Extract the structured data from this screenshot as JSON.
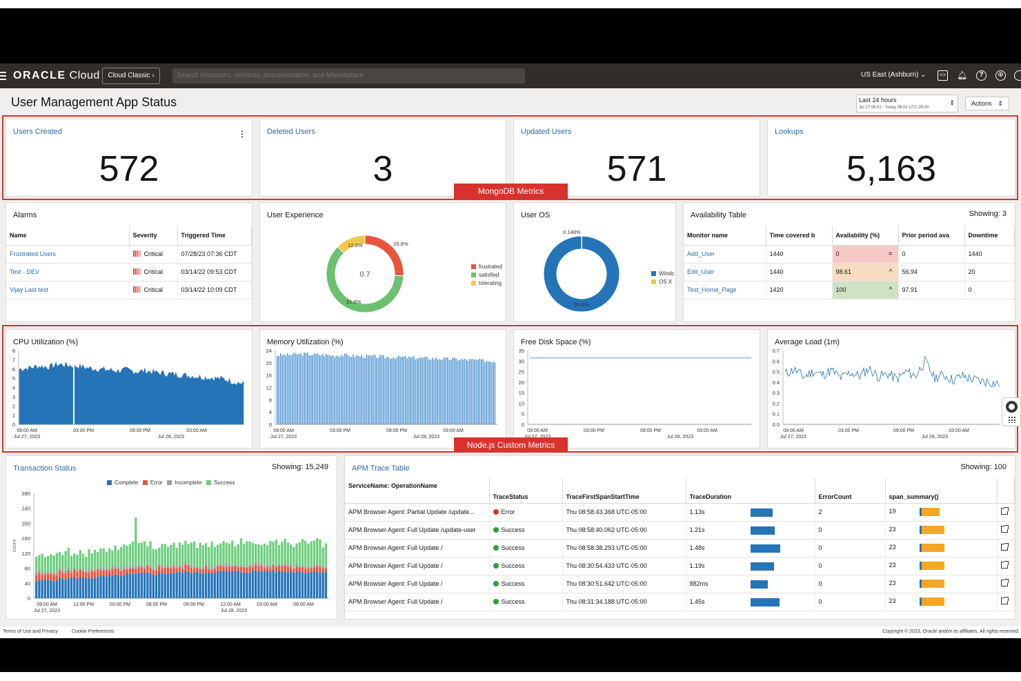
{
  "topbar": {
    "logo_brand": "ORACLE",
    "logo_product": "Cloud",
    "cloud_classic": "Cloud Classic",
    "search_placeholder": "Search resources, services, documentation, and Marketplace",
    "region": "US East (Ashburn)"
  },
  "page": {
    "title": "User Management App Status",
    "time_range": "Last 24 hours",
    "time_detail": "Jul 27 08:02 - Today 08:02 UTC-05:00",
    "actions": "Actions"
  },
  "metrics": [
    {
      "title": "Users Created",
      "value": "572"
    },
    {
      "title": "Deleted Users",
      "value": "3"
    },
    {
      "title": "Updated Users",
      "value": "571"
    },
    {
      "title": "Lookups",
      "value": "5,163"
    }
  ],
  "labels": {
    "mongodb": "MongoDB Metrics",
    "nodejs": "Node.js Custom Metrics"
  },
  "alarms": {
    "title": "Alarms",
    "columns": [
      "Name",
      "Severity",
      "Triggered Time"
    ],
    "rows": [
      {
        "name": "Frustrated Users",
        "severity": "Critical",
        "time": "07/28/23 07:36 CDT"
      },
      {
        "name": "Test - DEV",
        "severity": "Critical",
        "time": "03/14/22 09:53 CDT"
      },
      {
        "name": "Vijay Last test",
        "severity": "Critical",
        "time": "03/14/22 10:09 CDT"
      }
    ]
  },
  "user_experience": {
    "title": "User Experience",
    "center": "0.7",
    "legend": [
      "frustrated",
      "satisfied",
      "tolerating"
    ]
  },
  "user_os": {
    "title": "User OS",
    "legend": [
      "Windc",
      "OS X"
    ]
  },
  "availability": {
    "title": "Availability Table",
    "showing": "Showing: 3",
    "columns": [
      "Monitor name",
      "Time covered b",
      "Availability (%)",
      "Prior period ava",
      "Downtime"
    ],
    "rows": [
      {
        "name": "Add_User",
        "time": "1440",
        "avail": "0",
        "sym": "=",
        "prior": "0",
        "down": "1440"
      },
      {
        "name": "Edit_User",
        "time": "1440",
        "avail": "98.61",
        "sym": "^",
        "prior": "56.94",
        "down": "20"
      },
      {
        "name": "Test_Home_Page",
        "time": "1420",
        "avail": "100",
        "sym": "^",
        "prior": "97.91",
        "down": "0"
      }
    ]
  },
  "charts": {
    "cpu": {
      "title": "CPU Utilization (%)"
    },
    "memory": {
      "title": "Memory Utilization (%)"
    },
    "disk": {
      "title": "Free Disk Space (%)"
    },
    "load": {
      "title": "Average Load (1m)"
    },
    "time_ticks": [
      "09:00 AM",
      "03:00 PM",
      "09:00 PM",
      "03:00 AM"
    ],
    "date_start": "Jul 27, 2023",
    "date_end": "Jul 28, 2023"
  },
  "transaction": {
    "title": "Transaction Status",
    "showing": "Showing: 15,249",
    "legend": [
      "Complete",
      "Error",
      "Incomplete",
      "Success"
    ],
    "ylabel": "count",
    "time_ticks": [
      "09:00 AM",
      "12:00 PM",
      "03:00 PM",
      "06:00 PM",
      "09:00 PM",
      "12:00 AM",
      "03:00 AM",
      "06:00 AM"
    ]
  },
  "apm": {
    "title": "APM Trace Table",
    "showing": "Showing: 100",
    "columns": [
      "ServiceName: OperationName",
      "TraceStatus",
      "TraceFirstSpanStartTime",
      "TraceDuration",
      "ErrorCount",
      "span_summary()"
    ],
    "rows": [
      {
        "op": "APM Browser Agent: Partial Update /update...",
        "status": "Error",
        "start": "Thu 08:58:43.368 UTC-05:00",
        "dur": "1.13s",
        "err": "2",
        "span": "19"
      },
      {
        "op": "APM Browser Agent: Full Update /update-user",
        "status": "Success",
        "start": "Thu 08:58:40.062 UTC-05:00",
        "dur": "1.21s",
        "err": "0",
        "span": "23"
      },
      {
        "op": "APM Browser Agent: Full Update /",
        "status": "Success",
        "start": "Thu 08:58:38.293 UTC-05:00",
        "dur": "1.48s",
        "err": "0",
        "span": "23"
      },
      {
        "op": "APM Browser Agent: Full Update /",
        "status": "Success",
        "start": "Thu 08:30:54.433 UTC-05:00",
        "dur": "1.19s",
        "err": "0",
        "span": "23"
      },
      {
        "op": "APM Browser Agent: Full Update /",
        "status": "Success",
        "start": "Thu 08:30:51.642 UTC-05:00",
        "dur": "882ms",
        "err": "0",
        "span": "23"
      },
      {
        "op": "APM Browser Agent: Full Update /",
        "status": "Success",
        "start": "Thu 08:31:34.188 UTC-05:00",
        "dur": "1.45s",
        "err": "0",
        "span": "23"
      }
    ]
  },
  "footer": {
    "terms": "Terms of Use and Privacy",
    "cookies": "Cookie Preferences",
    "copyright": "Copyright © 2023, Oracle and/or its affiliates. All rights reserved."
  },
  "colors": {
    "accent_red": "#d9322e",
    "link": "#2d6ba8",
    "chart_blue": "#2574b8",
    "frustrated": "#e8553f",
    "satisfied": "#6cc070",
    "tolerating": "#f3c94c",
    "success": "#6fcf7f",
    "incomplete": "#9e9e9e"
  },
  "chart_data": [
    {
      "type": "pie",
      "title": "User Experience",
      "labels": [
        "frustrated",
        "satisfied",
        "tolerating"
      ],
      "values": [
        25.8,
        61.6,
        12.6
      ],
      "value_labels": [
        "25.8%",
        "61.6%",
        "12.6%"
      ],
      "center_value": 0.7
    },
    {
      "type": "pie",
      "title": "User OS",
      "labels": [
        "Windc",
        "OS X"
      ],
      "values": [
        99.9,
        0.148
      ],
      "value_labels": [
        "99.9%",
        "0.148%"
      ]
    },
    {
      "type": "area",
      "title": "CPU Utilization (%)",
      "ylim": [
        0,
        8
      ],
      "yticks": [
        0,
        1,
        2,
        3,
        4,
        5,
        6,
        7,
        8
      ],
      "series": [
        {
          "values": [
            6.0,
            6.1,
            6.3,
            6.2,
            6.5,
            6.4,
            6.3,
            6.1,
            6.0,
            5.9,
            5.8,
            5.9,
            5.7,
            5.8,
            5.6,
            5.5,
            5.4,
            5.3,
            5.2,
            5.1,
            5.0,
            4.9,
            4.6,
            4.4
          ]
        }
      ]
    },
    {
      "type": "bar",
      "title": "Memory Utilization (%)",
      "ylim": [
        0,
        24
      ],
      "yticks": [
        0,
        4,
        8,
        12,
        16,
        20,
        24
      ],
      "series": [
        {
          "values": [
            22.5,
            22.6,
            22.8,
            22.9,
            22.7,
            22.6,
            22.4,
            22.5,
            22.3,
            22.2,
            22.1,
            22.0,
            21.8,
            21.9,
            21.7,
            21.6,
            21.5,
            21.4,
            21.3,
            21.2,
            21.0,
            20.9,
            20.7,
            20.5
          ]
        }
      ]
    },
    {
      "type": "line",
      "title": "Free Disk Space (%)",
      "ylim": [
        0,
        35
      ],
      "yticks": [
        0,
        5,
        10,
        15,
        20,
        25,
        30,
        35
      ],
      "series": [
        {
          "values": [
            31.5,
            31.5,
            31.5,
            31.5,
            31.5,
            31.5,
            31.5,
            31.5,
            31.5,
            31.5,
            31.5,
            31.5
          ]
        }
      ]
    },
    {
      "type": "line",
      "title": "Average Load (1m)",
      "ylim": [
        0,
        0.7
      ],
      "yticks": [
        0.0,
        0.1,
        0.2,
        0.3,
        0.4,
        0.5,
        0.6,
        0.7
      ],
      "series": [
        {
          "values": [
            0.48,
            0.52,
            0.45,
            0.5,
            0.47,
            0.51,
            0.44,
            0.49,
            0.46,
            0.53,
            0.45,
            0.48,
            0.43,
            0.5,
            0.46,
            0.6,
            0.44,
            0.47,
            0.42,
            0.46,
            0.43,
            0.41,
            0.4,
            0.38
          ]
        }
      ]
    },
    {
      "type": "bar",
      "title": "Transaction Status",
      "ylabel": "count",
      "ylim": [
        0,
        280
      ],
      "yticks": [
        0,
        40,
        80,
        120,
        160,
        200,
        240,
        280
      ],
      "categories_count": 30,
      "series": [
        {
          "name": "Complete",
          "values": [
            45,
            48,
            50,
            52,
            55,
            54,
            56,
            58,
            60,
            62,
            64,
            66,
            65,
            67,
            68,
            70,
            68,
            69,
            70,
            72,
            71,
            70,
            72,
            73,
            72,
            71,
            72,
            70,
            71,
            72
          ]
        },
        {
          "name": "Error",
          "values": [
            18,
            17,
            18,
            17,
            16,
            17,
            16,
            15,
            16,
            15,
            16,
            15,
            14,
            15,
            14,
            15,
            14,
            13,
            14,
            13,
            14,
            13,
            12,
            13,
            12,
            13,
            12,
            13,
            12,
            12
          ]
        },
        {
          "name": "Incomplete",
          "values": [
            8,
            8,
            7,
            8,
            7,
            8,
            7,
            6,
            7,
            8,
            7,
            6,
            7,
            6,
            7,
            6,
            7,
            6,
            5,
            6,
            5,
            6,
            5,
            6,
            5,
            6,
            5,
            6,
            5,
            5
          ]
        },
        {
          "name": "Success",
          "values": [
            40,
            42,
            44,
            43,
            46,
            48,
            50,
            47,
            49,
            51,
            130,
            53,
            52,
            54,
            56,
            55,
            57,
            58,
            56,
            57,
            59,
            58,
            57,
            59,
            60,
            58,
            59,
            60,
            58,
            59
          ]
        }
      ]
    }
  ]
}
